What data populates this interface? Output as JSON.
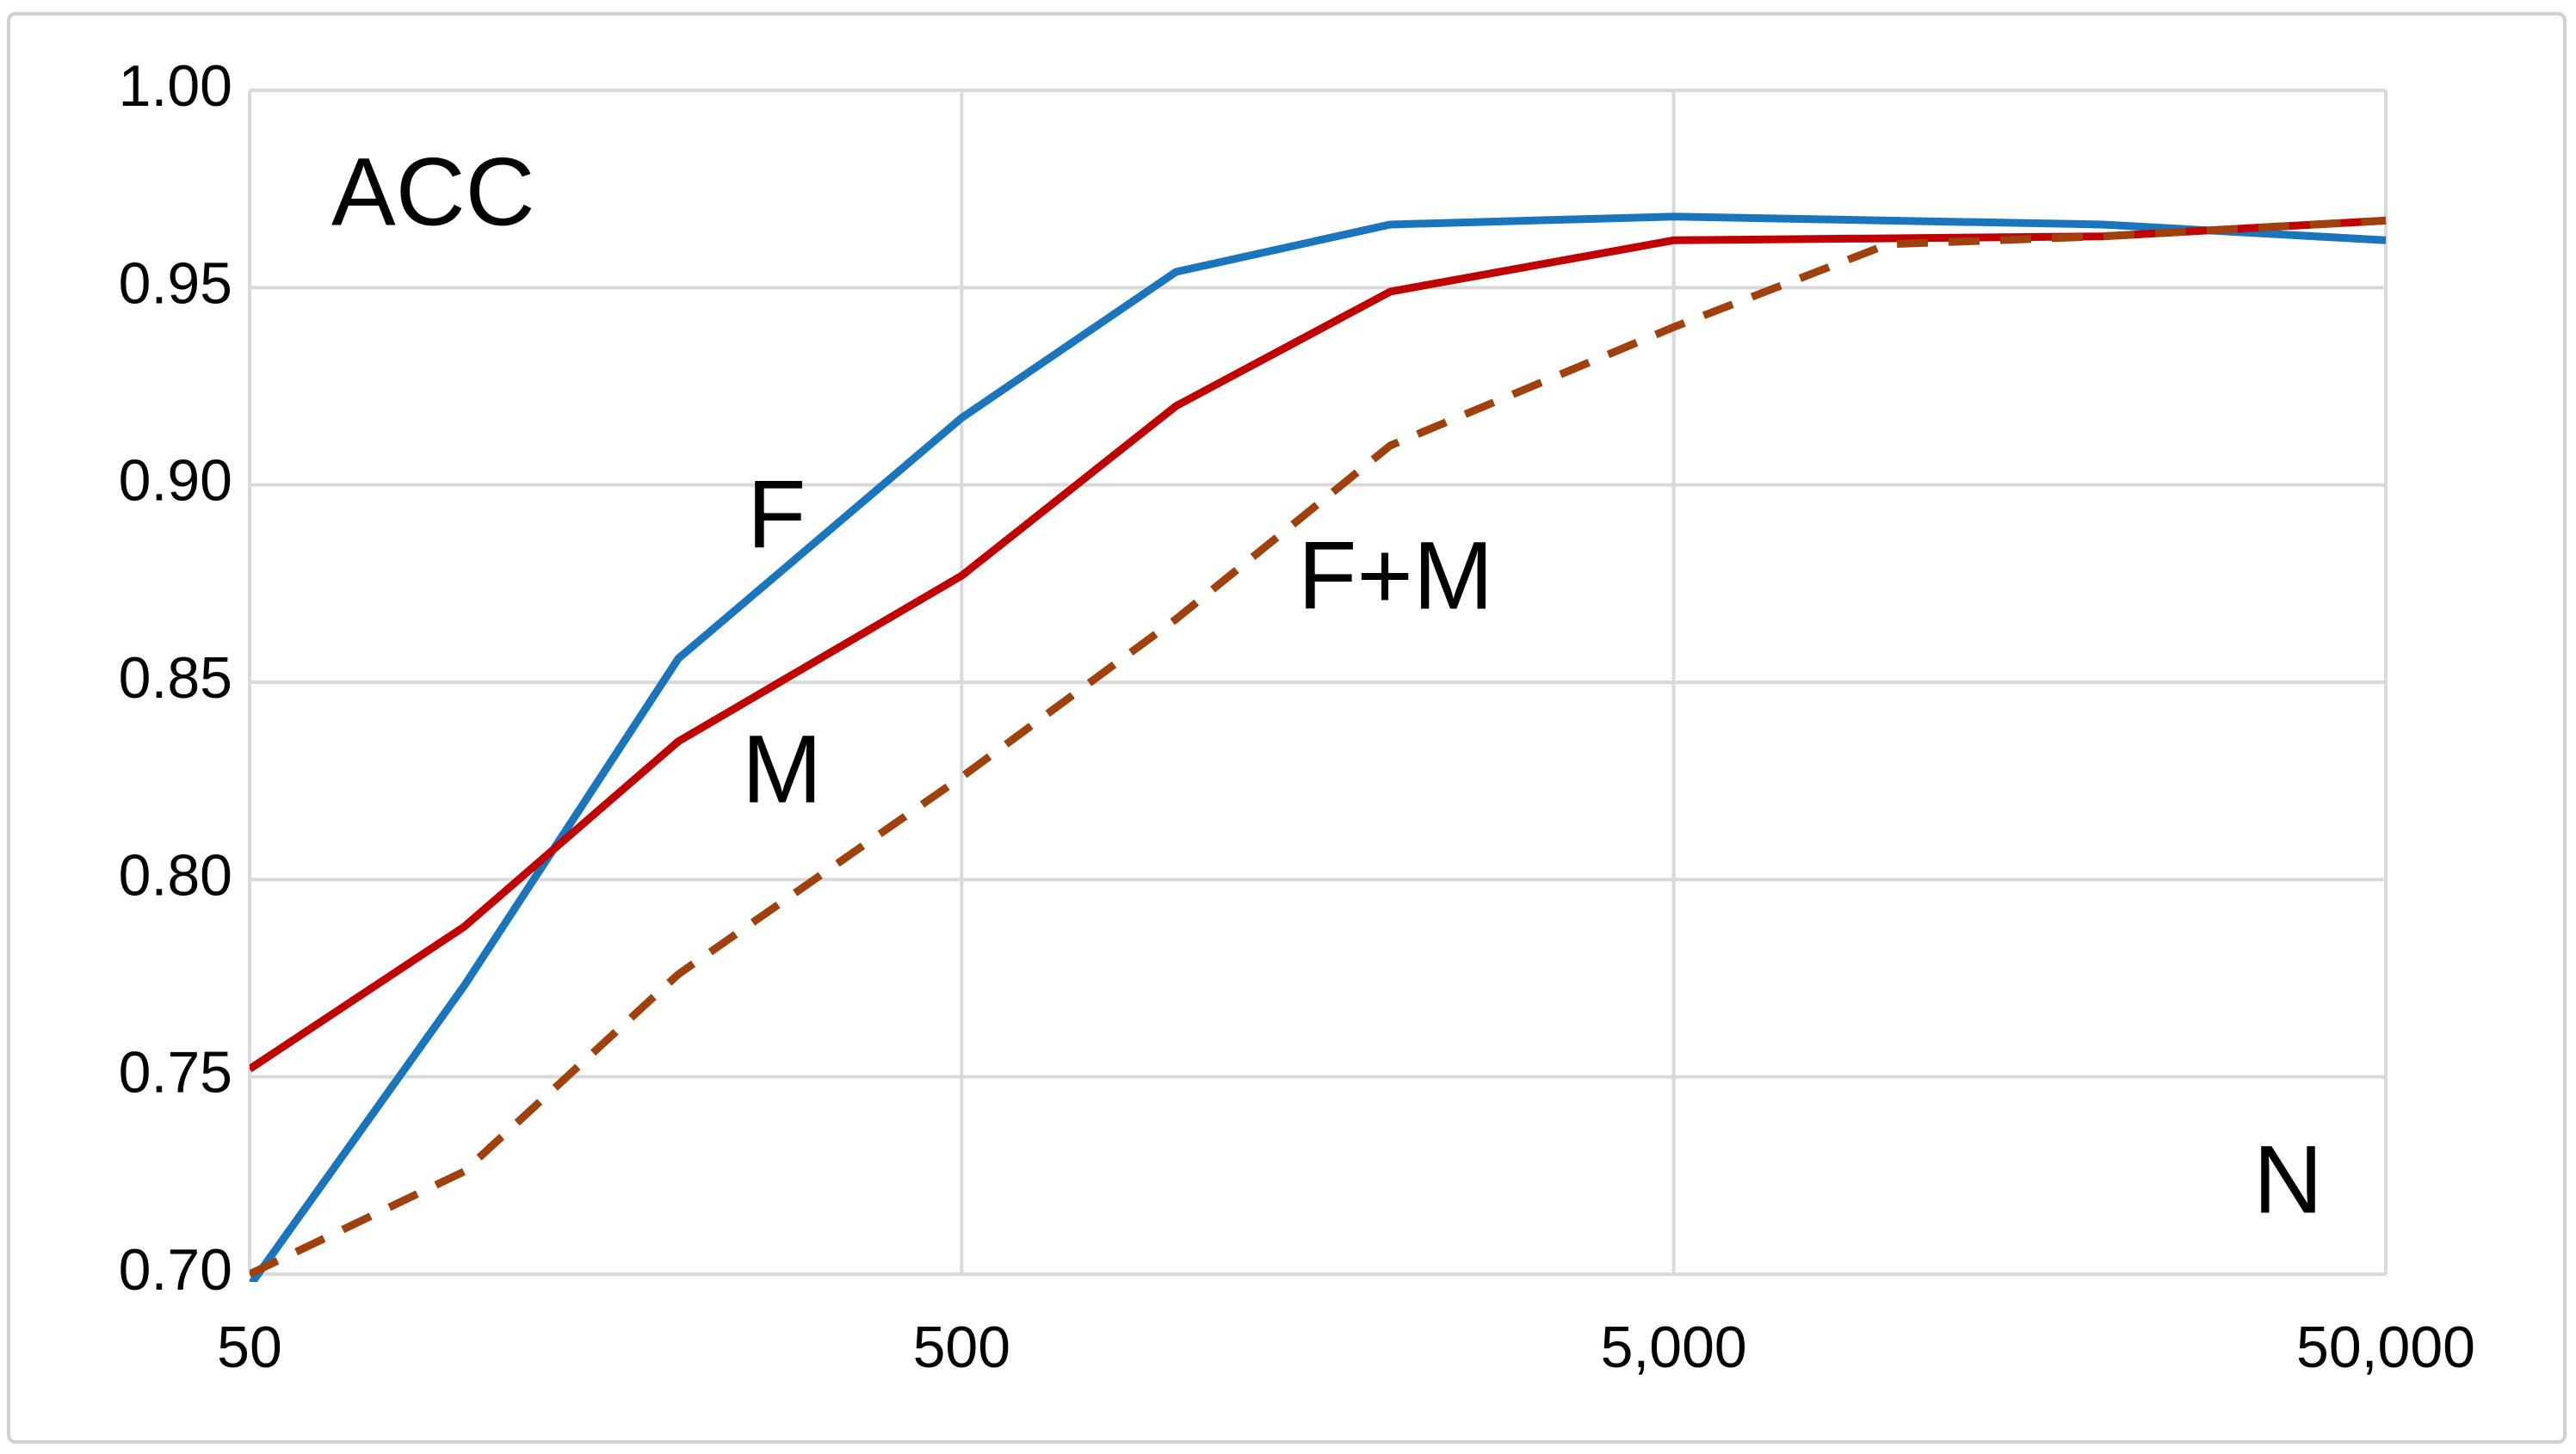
{
  "chart_data": {
    "type": "line",
    "annotations": [
      "ACC",
      "F",
      "M",
      "F+M",
      "N"
    ],
    "xscale": "log",
    "xlim": [
      50,
      50000
    ],
    "xticks": [
      50,
      500,
      {
        "value": 5000,
        "label": "5,000"
      },
      {
        "value": 50000,
        "label": "50,000"
      }
    ],
    "ylim": [
      0.7,
      1.0
    ],
    "yticks": [
      {
        "value": 0.7,
        "label": "0.70"
      },
      {
        "value": 0.75,
        "label": "0.75"
      },
      {
        "value": 0.8,
        "label": "0.80"
      },
      {
        "value": 0.85,
        "label": "0.85"
      },
      {
        "value": 0.9,
        "label": "0.90"
      },
      {
        "value": 0.95,
        "label": "0.95"
      },
      {
        "value": 1.0,
        "label": "1.00"
      }
    ],
    "grid": true,
    "series": [
      {
        "name": "F",
        "color": "#1a75bc",
        "dash": false,
        "x": [
          50,
          100,
          200,
          500,
          1000,
          2000,
          5000,
          20000,
          50000
        ],
        "values": [
          0.697,
          0.773,
          0.856,
          0.917,
          0.954,
          0.966,
          0.968,
          0.966,
          0.962
        ]
      },
      {
        "name": "M",
        "color": "#c00000",
        "dash": false,
        "x": [
          50,
          100,
          200,
          500,
          1000,
          2000,
          5000,
          20000,
          50000
        ],
        "values": [
          0.752,
          0.788,
          0.835,
          0.877,
          0.92,
          0.949,
          0.962,
          0.963,
          0.967
        ]
      },
      {
        "name": "F+M",
        "color": "#a0410d",
        "dash": true,
        "x": [
          50,
          100,
          200,
          500,
          1000,
          2000,
          5000,
          10000,
          20000,
          50000
        ],
        "values": [
          0.7,
          0.726,
          0.776,
          0.826,
          0.866,
          0.91,
          0.94,
          0.961,
          0.963,
          0.967
        ]
      }
    ]
  }
}
